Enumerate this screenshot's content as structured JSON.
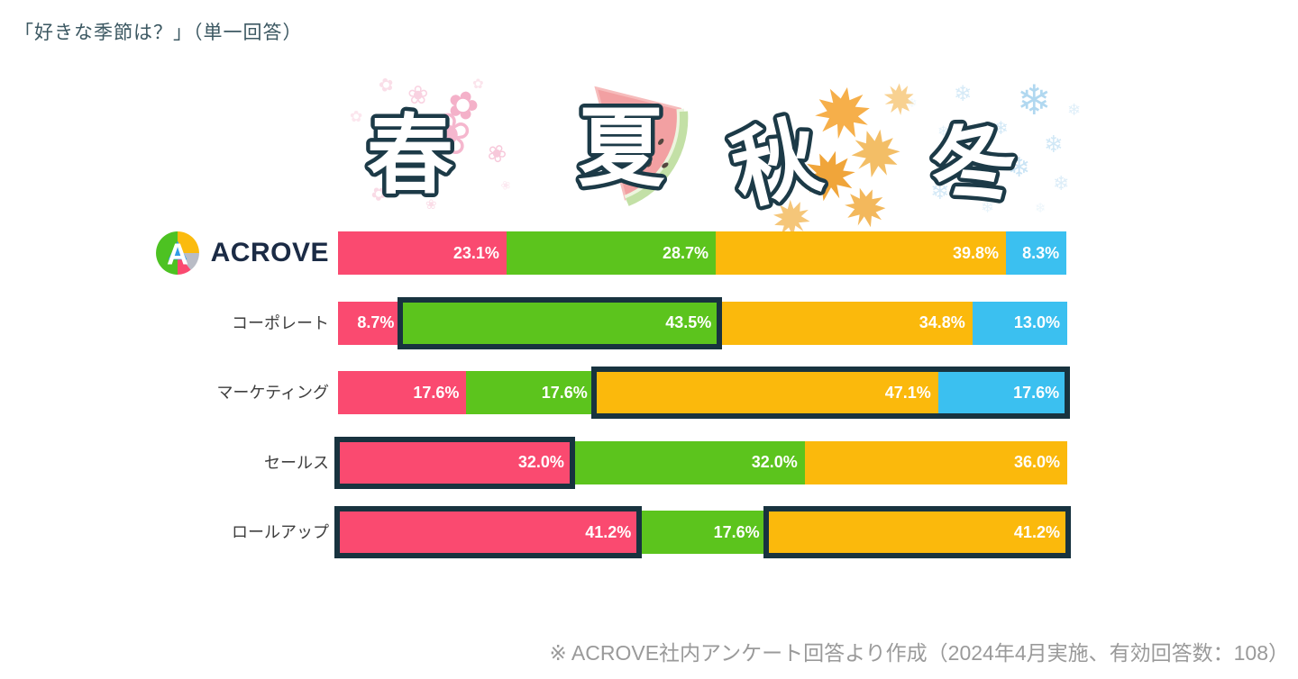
{
  "page": {
    "title": "「好きな季節は？」（単一回答）",
    "footer": "※ ACROVE社内アンケート回答より作成（2024年4月実施、有効回答数：108）"
  },
  "logo": {
    "wordmark": "ACROVE"
  },
  "icons": {
    "snowflake": "❄",
    "blossom": "❀",
    "blossom2": "✿"
  },
  "seasons": [
    {
      "kanji": "春",
      "name": "spring",
      "decor": "cherry-blossoms"
    },
    {
      "kanji": "夏",
      "name": "summer",
      "decor": "watermelon"
    },
    {
      "kanji": "秋",
      "name": "autumn",
      "decor": "maple-leaves"
    },
    {
      "kanji": "冬",
      "name": "winter",
      "decor": "snowflakes"
    }
  ],
  "chart_data": {
    "type": "bar",
    "subtype": "horizontal-stacked",
    "unit": "%",
    "categories": [
      "ACROVE",
      "コーポレート",
      "マーケティング",
      "セールス",
      "ロールアップ"
    ],
    "series": [
      {
        "key": "spring",
        "name": "春",
        "color": "#FA4A70"
      },
      {
        "key": "summer",
        "name": "夏",
        "color": "#5CC41D"
      },
      {
        "key": "autumn",
        "name": "秋",
        "color": "#FBB90C"
      },
      {
        "key": "winter",
        "name": "冬",
        "color": "#3BC0F0"
      }
    ],
    "highlight_border_color": "#18333F",
    "rows": [
      {
        "label": "ACROVE",
        "logo": true,
        "values": [
          23.1,
          28.7,
          39.8,
          8.3
        ],
        "labels": [
          "23.1%",
          "28.7%",
          "39.8%",
          "8.3%"
        ],
        "highlights": []
      },
      {
        "label": "コーポレート",
        "values": [
          8.7,
          43.5,
          34.8,
          13.0
        ],
        "labels": [
          "8.7%",
          "43.5%",
          "34.8%",
          "13.0%"
        ],
        "highlights": [
          [
            1,
            1
          ]
        ]
      },
      {
        "label": "マーケティング",
        "values": [
          17.6,
          17.6,
          47.1,
          17.6
        ],
        "labels": [
          "17.6%",
          "17.6%",
          "47.1%",
          "17.6%"
        ],
        "highlights": [
          [
            2,
            3
          ]
        ]
      },
      {
        "label": "セールス",
        "values": [
          32.0,
          32.0,
          36.0,
          0
        ],
        "labels": [
          "32.0%",
          "32.0%",
          "36.0%",
          ""
        ],
        "highlights": [
          [
            0,
            0
          ]
        ]
      },
      {
        "label": "ロールアップ",
        "values": [
          41.2,
          17.6,
          41.2,
          0
        ],
        "labels": [
          "41.2%",
          "17.6%",
          "41.2%",
          ""
        ],
        "highlights": [
          [
            0,
            0
          ],
          [
            2,
            2
          ]
        ]
      }
    ]
  }
}
